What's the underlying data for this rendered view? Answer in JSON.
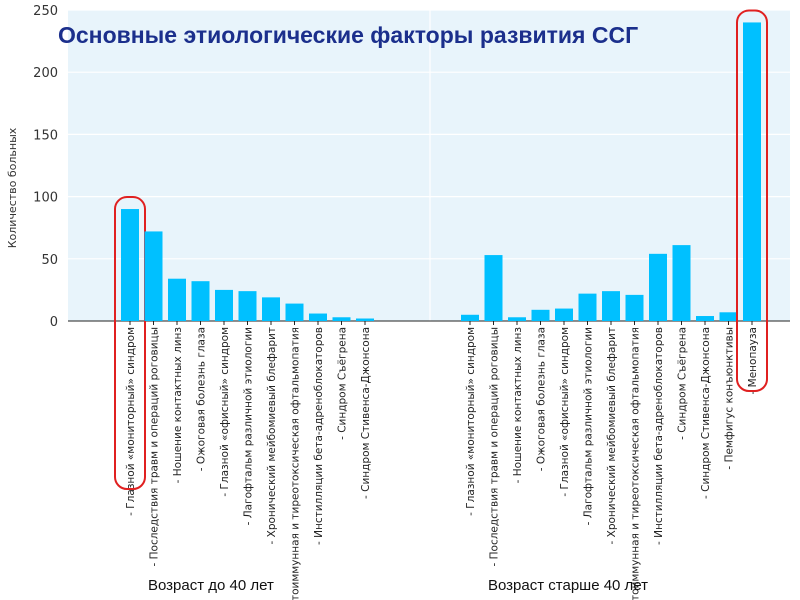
{
  "chart_data": {
    "type": "bar",
    "title": "Основные этиологические факторы развития ССГ",
    "ylabel": "Количество больных",
    "ylim": [
      0,
      250
    ],
    "yticks": [
      0,
      50,
      100,
      150,
      200,
      250
    ],
    "grid": true,
    "colors": {
      "plot_bg": "#e8f4fb",
      "bar": "#00c0ff",
      "grid": "#ffffff",
      "highlight": "#e02020",
      "title": "#1b2f8c"
    },
    "groups": [
      {
        "label": "Возраст до 40 лет",
        "categories": [
          "- Глазной «мониторный» синдром",
          "- Последствия травм и операций роговицы",
          "- Ношение контактных линз",
          "- Ожоговая болезнь глаза",
          "- Глазной «офисный» синдром",
          "- Лагофтальм различной этиологии",
          "- Хронический мейбомиевый блефарит",
          "- Аутоиммунная и тиреотоксическая офтальмопатия",
          "- Инстилляции бета-адреноблокаторов",
          "- Синдром Съёгрена",
          "- Синдром Стивенса-Джонсона"
        ],
        "values": [
          90,
          72,
          34,
          32,
          25,
          24,
          19,
          14,
          6,
          3,
          2
        ],
        "highlight_index": 0
      },
      {
        "label": "Возраст старше 40 лет",
        "categories": [
          "- Глазной «мониторный» синдром",
          "- Последствия травм и операций роговицы",
          "- Ношение контактных линз",
          "- Ожоговая болезнь глаза",
          "- Глазной «офисный» синдром",
          "- Лагофтальм различной этиологии",
          "- Хронический мейбомиевый блефарит",
          "- Аутоиммунная и тиреотоксическая офтальмопатия",
          "- Инстилляции бета-адреноблокаторов",
          "- Синдром Съёгрена",
          "- Синдром Стивенса-Джонсона",
          "- Пемфигус конъюнктивы",
          "- Менопауза"
        ],
        "values": [
          5,
          53,
          3,
          9,
          10,
          22,
          24,
          21,
          54,
          61,
          4,
          7,
          240
        ],
        "highlight_index": 12
      }
    ]
  }
}
